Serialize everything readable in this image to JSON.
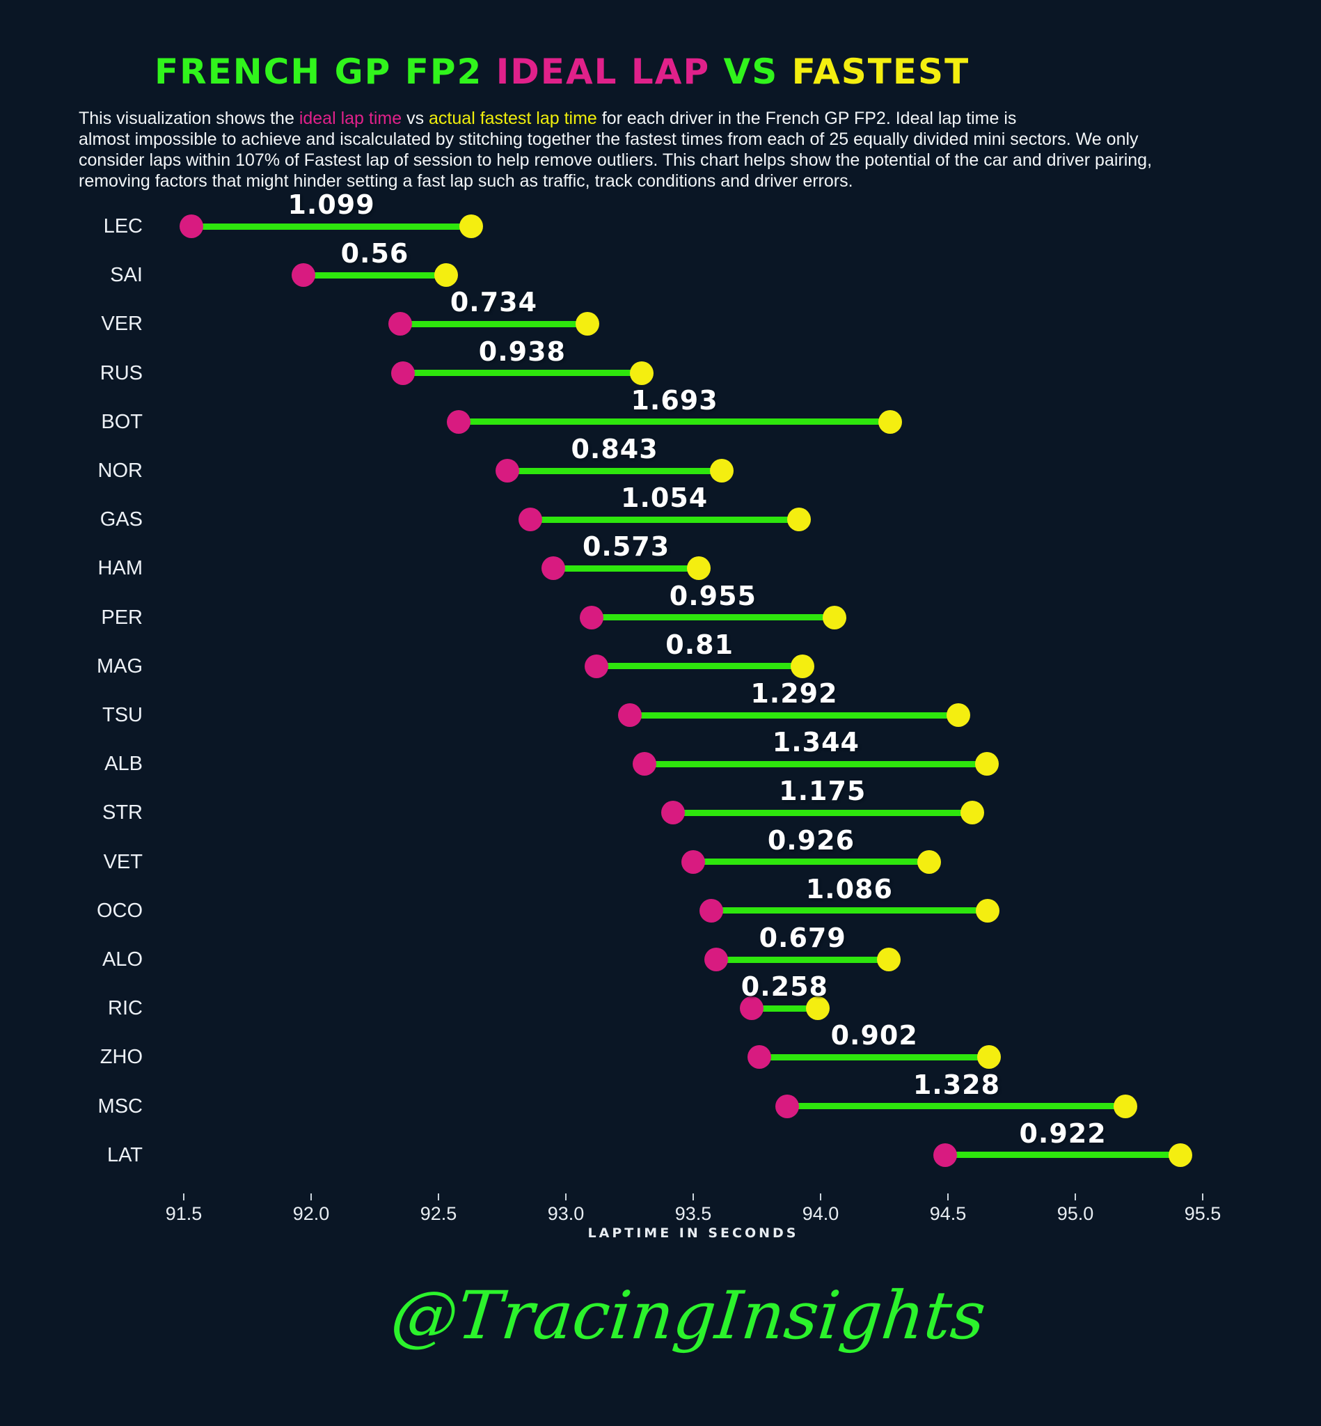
{
  "page": {
    "background": "#0a1625"
  },
  "title": {
    "seg1": "FRENCH GP FP2 ",
    "seg2": "IDEAL LAP",
    "seg3": " VS ",
    "seg4": "FASTEST"
  },
  "description": {
    "lines": [
      [
        {
          "t": "This visualization shows the "
        },
        {
          "t": "ideal lap time",
          "c": "pink"
        },
        {
          "t": " vs "
        },
        {
          "t": "actual fastest lap time",
          "c": "yellow"
        },
        {
          "t": " for each driver in the French GP FP2. Ideal lap time is"
        }
      ],
      [
        {
          "t": "almost impossible to achieve and iscalculated by stitching together the fastest times from each of 25 equally divided mini sectors. We only"
        }
      ],
      [
        {
          "t": "consider laps within 107% of Fastest lap of session to help remove outliers. This chart helps show the potential of the car and driver pairing,"
        }
      ],
      [
        {
          "t": "removing factors that might hinder setting a fast lap such as traffic, track conditions and driver errors."
        }
      ]
    ]
  },
  "chart_data": {
    "type": "dumbbell",
    "title": "FRENCH GP FP2 IDEAL LAP VS FASTEST",
    "xlabel": "LAPTIME IN SECONDS",
    "x_ticks": [
      91.5,
      92.0,
      92.5,
      93.0,
      93.5,
      94.0,
      94.5,
      95.0,
      95.5
    ],
    "xlim": [
      91.3,
      95.7
    ],
    "grid": false,
    "legend_position": "none",
    "series": [
      {
        "name": "ideal lap time",
        "color": "#d81b80",
        "marker": "circle"
      },
      {
        "name": "actual fastest lap time",
        "color": "#f4ee10",
        "marker": "circle"
      }
    ],
    "connector_color": "#2ee60d",
    "drivers": [
      {
        "code": "LEC",
        "ideal": 91.53,
        "fastest": 92.629,
        "delta": "1.099"
      },
      {
        "code": "SAI",
        "ideal": 91.97,
        "fastest": 92.53,
        "delta": "0.56"
      },
      {
        "code": "VER",
        "ideal": 92.35,
        "fastest": 93.084,
        "delta": "0.734"
      },
      {
        "code": "RUS",
        "ideal": 92.36,
        "fastest": 93.298,
        "delta": "0.938"
      },
      {
        "code": "BOT",
        "ideal": 92.58,
        "fastest": 94.273,
        "delta": "1.693"
      },
      {
        "code": "NOR",
        "ideal": 92.77,
        "fastest": 93.613,
        "delta": "0.843"
      },
      {
        "code": "GAS",
        "ideal": 92.86,
        "fastest": 93.914,
        "delta": "1.054"
      },
      {
        "code": "HAM",
        "ideal": 92.95,
        "fastest": 93.523,
        "delta": "0.573"
      },
      {
        "code": "PER",
        "ideal": 93.1,
        "fastest": 94.055,
        "delta": "0.955"
      },
      {
        "code": "MAG",
        "ideal": 93.12,
        "fastest": 93.93,
        "delta": "0.81"
      },
      {
        "code": "TSU",
        "ideal": 93.25,
        "fastest": 94.542,
        "delta": "1.292"
      },
      {
        "code": "ALB",
        "ideal": 93.31,
        "fastest": 94.654,
        "delta": "1.344"
      },
      {
        "code": "STR",
        "ideal": 93.42,
        "fastest": 94.595,
        "delta": "1.175"
      },
      {
        "code": "VET",
        "ideal": 93.5,
        "fastest": 94.426,
        "delta": "0.926"
      },
      {
        "code": "OCO",
        "ideal": 93.57,
        "fastest": 94.656,
        "delta": "1.086"
      },
      {
        "code": "ALO",
        "ideal": 93.59,
        "fastest": 94.269,
        "delta": "0.679"
      },
      {
        "code": "RIC",
        "ideal": 93.73,
        "fastest": 93.988,
        "delta": "0.258"
      },
      {
        "code": "ZHO",
        "ideal": 93.76,
        "fastest": 94.662,
        "delta": "0.902"
      },
      {
        "code": "MSC",
        "ideal": 93.87,
        "fastest": 95.198,
        "delta": "1.328"
      },
      {
        "code": "LAT",
        "ideal": 94.49,
        "fastest": 95.412,
        "delta": "0.922"
      }
    ]
  },
  "signature": "@TracingInsights",
  "colors": {
    "background": "#0a1625",
    "title_green": "#31f41c",
    "title_pink": "#e0218a",
    "title_yellow": "#f4ee10",
    "ideal_dot": "#d81b80",
    "fastest_dot": "#f4ee10",
    "connector": "#2ee60d",
    "text": "#f2f5f7",
    "signature_green": "#2cf32c"
  }
}
